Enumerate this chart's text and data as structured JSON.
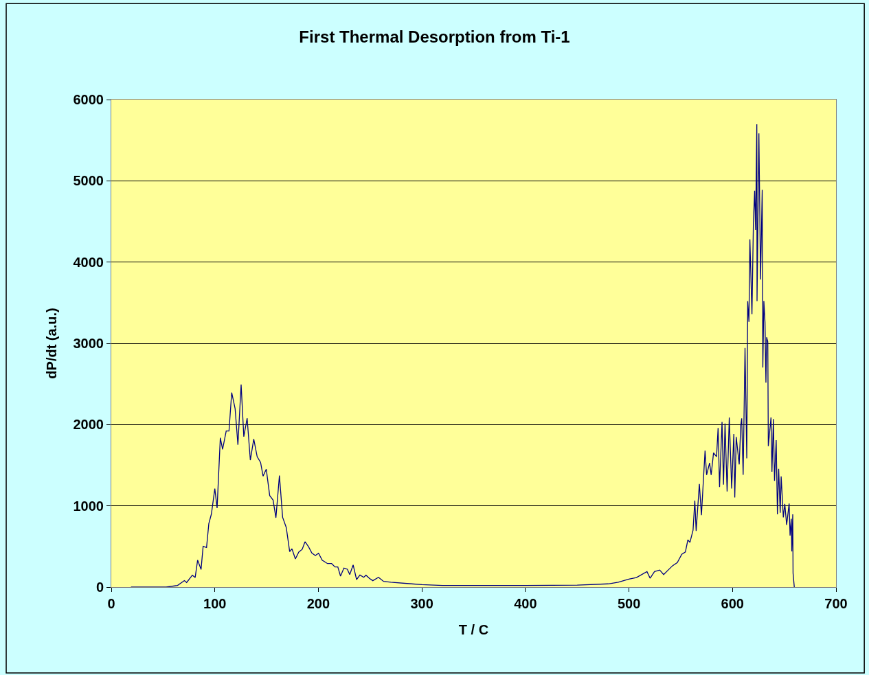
{
  "chart_data": {
    "type": "line",
    "title": "First Thermal Desorption from Ti-1",
    "xlabel": "T / C",
    "ylabel": "dP/dt (a.u.)",
    "xlim": [
      0,
      700
    ],
    "xticks": [
      0,
      100,
      200,
      300,
      400,
      500,
      600,
      700
    ],
    "ylim": [
      0,
      6000
    ],
    "yticks": [
      0,
      1000,
      2000,
      3000,
      4000,
      5000,
      6000
    ],
    "grid": "y",
    "marker": "none",
    "line_style": "solid",
    "series": [
      {
        "color": "#000080",
        "x": [
          19,
          53,
          64,
          70.6,
          72.8,
          78.3,
          81,
          83.4,
          86.7,
          88.7,
          92,
          94.2,
          96.7,
          100,
          102.2,
          105.3,
          107.5,
          111,
          113.7,
          116.3,
          119.6,
          122.3,
          125.4,
          128,
          131.2,
          134.3,
          137.6,
          140.9,
          144.2,
          146.6,
          149.7,
          153,
          156.3,
          159,
          162.4,
          165.5,
          169,
          172.3,
          174.5,
          177.8,
          181.1,
          184.4,
          187.1,
          190.4,
          193.8,
          197.1,
          200.2,
          203.7,
          208.8,
          212.8,
          216.1,
          218.8,
          221.4,
          224.7,
          228,
          230.3,
          233.6,
          236.9,
          240.2,
          243.8,
          246,
          249.3,
          252.6,
          258.1,
          263,
          270,
          290,
          300,
          320,
          350,
          400,
          450,
          480,
          489.7,
          499.9,
          507.2,
          517.4,
          520.4,
          524.7,
          529.7,
          533.5,
          537.9,
          542.3,
          546.7,
          551,
          554.5,
          556.9,
          558.9,
          561.9,
          563.6,
          564.9,
          568,
          570,
          573.5,
          575,
          577.9,
          579.4,
          581.7,
          584.6,
          586.1,
          587.5,
          589.9,
          591.3,
          592.8,
          594.8,
          596.9,
          599.2,
          601.3,
          602.2,
          603.6,
          606.5,
          608,
          608.9,
          610.3,
          612.1,
          613.8,
          614.7,
          615.9,
          616.8,
          618.8,
          620.2,
          621.4,
          622.3,
          623.5,
          623.7,
          625.5,
          627.1,
          628.7,
          629.3,
          630.3,
          631.4,
          632.3,
          633,
          634.1,
          634.6,
          637.2,
          638.1,
          639.5,
          640.6,
          642.2,
          643.4,
          644.6,
          646.1,
          647,
          649.1,
          650.5,
          652.3,
          654.7,
          655.6,
          656.8,
          657.3,
          658.2,
          658.5,
          659.7
        ],
        "values": [
          0,
          0,
          20,
          80,
          57,
          146,
          118,
          333,
          217,
          501,
          487,
          780,
          900,
          1211,
          972,
          1837,
          1696,
          1921,
          1921,
          2394,
          2197,
          1752,
          2493,
          1851,
          2079,
          1563,
          1822,
          1605,
          1535,
          1366,
          1451,
          1127,
          1070,
          853,
          1372,
          859,
          733,
          437,
          471,
          347,
          431,
          465,
          558,
          499,
          417,
          389,
          417,
          332,
          290,
          290,
          248,
          248,
          135,
          234,
          220,
          155,
          273,
          93,
          149,
          121,
          146,
          107,
          79,
          121,
          70,
          60,
          40,
          30,
          20,
          20,
          20,
          25,
          40,
          61,
          98,
          117,
          191,
          109,
          191,
          210,
          154,
          210,
          265,
          302,
          403,
          433,
          581,
          551,
          700,
          1065,
          692,
          1269,
          886,
          1679,
          1380,
          1529,
          1380,
          1653,
          1605,
          1958,
          1232,
          2032,
          1261,
          2013,
          1176,
          2088,
          1213,
          1885,
          1102,
          1848,
          1510,
          1994,
          2077,
          1381,
          2943,
          1585,
          3520,
          3264,
          4281,
          3359,
          4487,
          4877,
          4394,
          5696,
          3520,
          5584,
          3786,
          4889,
          2702,
          3521,
          3261,
          2516,
          3074,
          3018,
          1734,
          2088,
          1419,
          2069,
          1308,
          1808,
          895,
          1456,
          914,
          1363,
          858,
          1025,
          765,
          1028,
          635,
          840,
          440,
          895,
          172,
          0
        ]
      }
    ]
  }
}
